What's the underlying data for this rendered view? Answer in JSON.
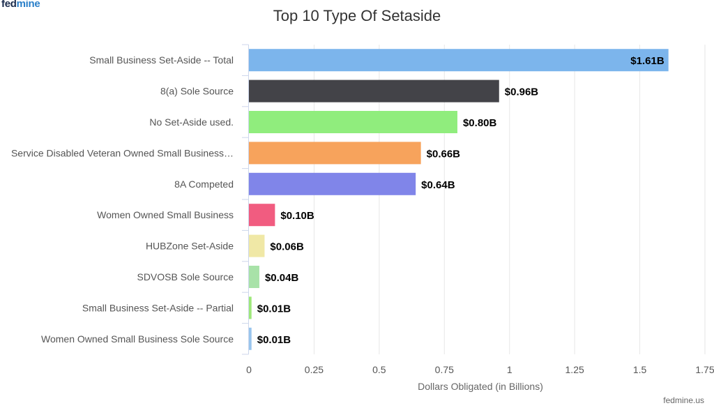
{
  "brand": {
    "fed": "fed",
    "mine": "mine"
  },
  "footer": "fedmine.us",
  "colors": {
    "grid": "#e6e6e6",
    "text": "#333333",
    "axis_text": "#555555"
  },
  "chart_data": {
    "type": "bar",
    "orientation": "horizontal",
    "title": "Top 10 Type Of Setaside",
    "xlabel": "Dollars Obligated (in Billions)",
    "ylabel": "",
    "xlim": [
      0,
      1.75
    ],
    "xticks": [
      0,
      0.25,
      0.5,
      0.75,
      1,
      1.25,
      1.5,
      1.75
    ],
    "grid": true,
    "categories": [
      "Small Business Set-Aside -- Total",
      "8(a) Sole Source",
      "No Set-Aside used.",
      "Service Disabled Veteran Owned Small Business…",
      "8A Competed",
      "Women Owned Small Business",
      "HUBZone Set-Aside",
      "SDVOSB Sole Source",
      "Small Business Set-Aside -- Partial",
      "Women Owned Small Business Sole Source"
    ],
    "values": [
      1.61,
      0.96,
      0.8,
      0.66,
      0.64,
      0.1,
      0.06,
      0.04,
      0.01,
      0.01
    ],
    "labels": [
      "$1.61B",
      "$0.96B",
      "$0.80B",
      "$0.66B",
      "$0.64B",
      "$0.10B",
      "$0.06B",
      "$0.04B",
      "$0.01B",
      "$0.01B"
    ],
    "bar_colors": [
      "#7cb5ec",
      "#434348",
      "#90ed7d",
      "#f7a35c",
      "#8085e9",
      "#f15c80",
      "#f0e8a6",
      "#a8e2a8",
      "#9ee87a",
      "#99c5ee"
    ]
  }
}
